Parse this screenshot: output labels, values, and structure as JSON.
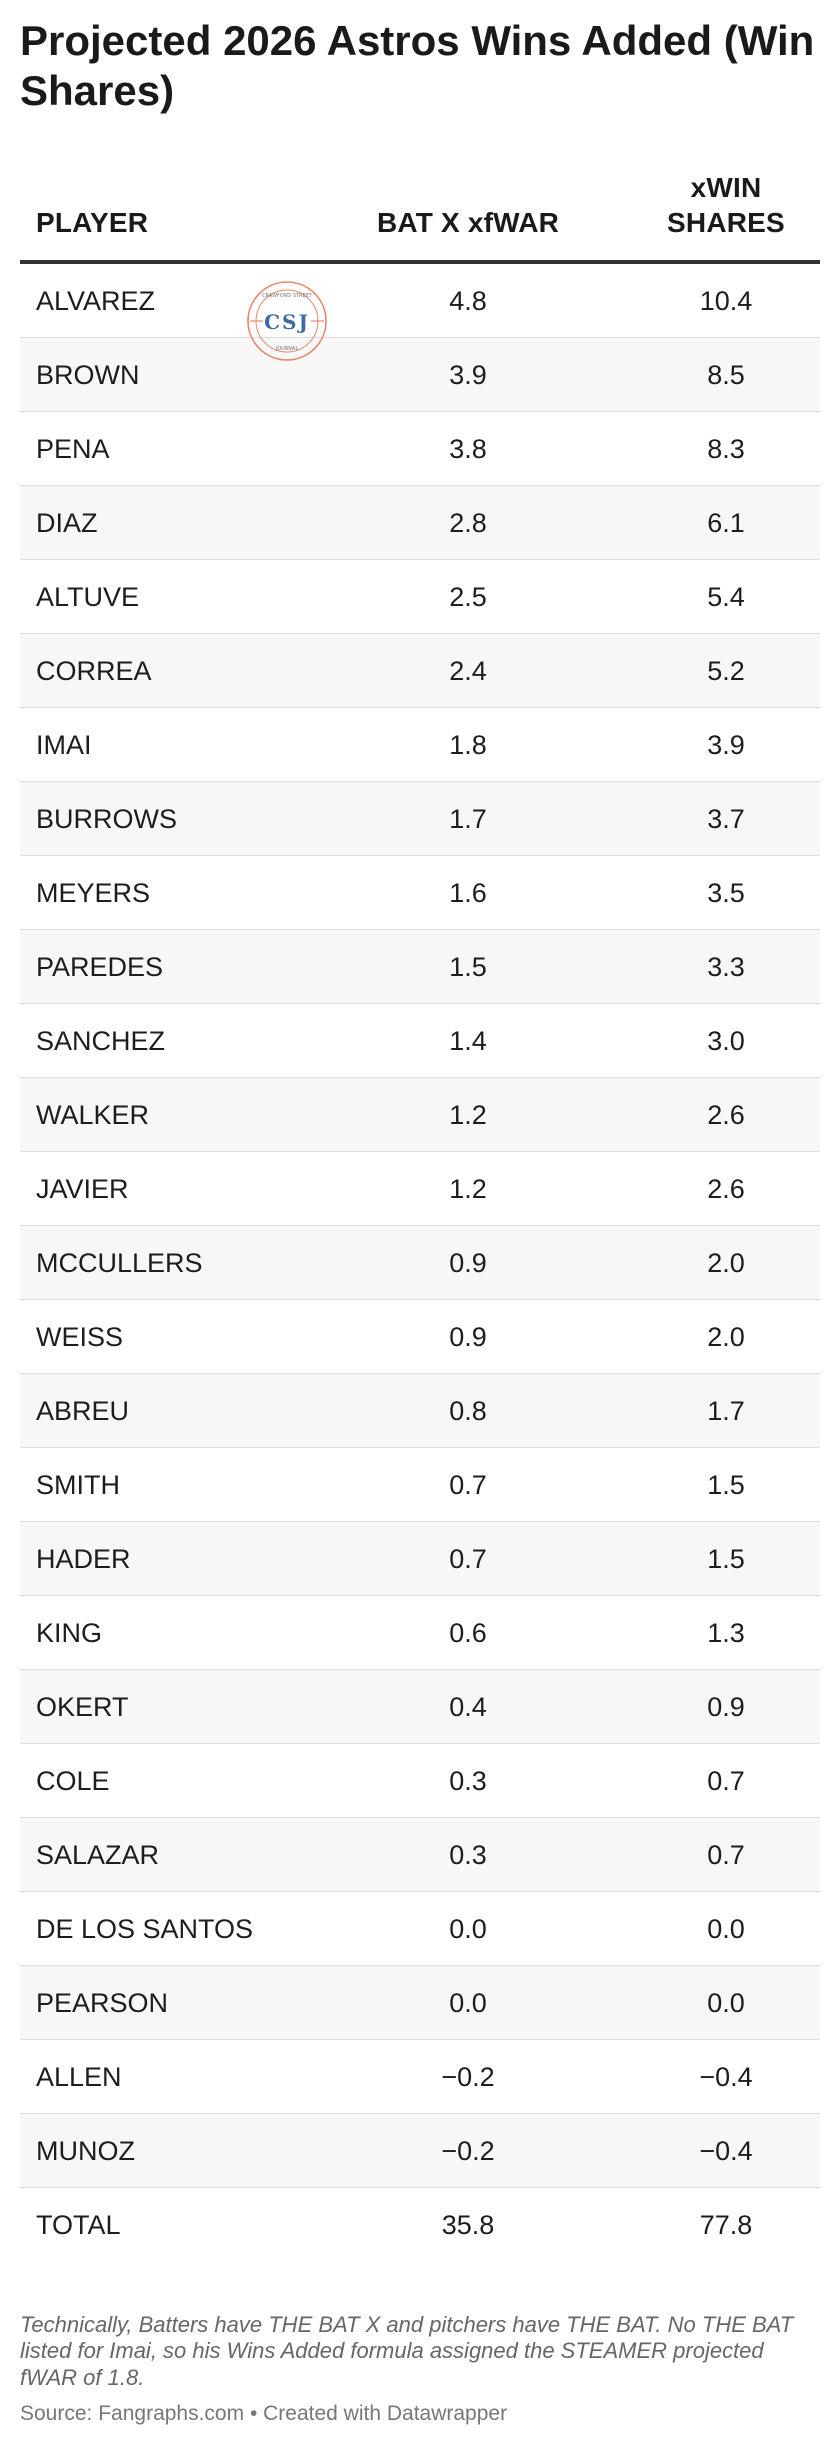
{
  "title": "Projected 2026 Astros Wins Added (Win Shares)",
  "columns": {
    "player": "PLAYER",
    "bat": "BAT X xfWAR",
    "xwin_line1": "xWIN",
    "xwin_line2": "SHARES"
  },
  "watermark": {
    "top_text": "CRAWFORD STREET",
    "initials": "CSJ",
    "bottom_text": "JOURNAL",
    "color": "#e8866a"
  },
  "notes": "Technically, Batters have THE BAT X and pitchers have THE BAT. No THE BAT listed for Imai, so his Wins Added formula assigned the STEAMER projected fWAR of 1.8.",
  "source": "Source: Fangraphs.com • Created with Datawrapper",
  "chart_data": {
    "type": "table",
    "columns": [
      "PLAYER",
      "BAT X xfWAR",
      "xWIN SHARES"
    ],
    "rows": [
      {
        "player": "ALVAREZ",
        "bat": "4.8",
        "xwin": "10.4"
      },
      {
        "player": "BROWN",
        "bat": "3.9",
        "xwin": "8.5"
      },
      {
        "player": "PENA",
        "bat": "3.8",
        "xwin": "8.3"
      },
      {
        "player": "DIAZ",
        "bat": "2.8",
        "xwin": "6.1"
      },
      {
        "player": "ALTUVE",
        "bat": "2.5",
        "xwin": "5.4"
      },
      {
        "player": "CORREA",
        "bat": "2.4",
        "xwin": "5.2"
      },
      {
        "player": "IMAI",
        "bat": "1.8",
        "xwin": "3.9"
      },
      {
        "player": "BURROWS",
        "bat": "1.7",
        "xwin": "3.7"
      },
      {
        "player": "MEYERS",
        "bat": "1.6",
        "xwin": "3.5"
      },
      {
        "player": "PAREDES",
        "bat": "1.5",
        "xwin": "3.3"
      },
      {
        "player": "SANCHEZ",
        "bat": "1.4",
        "xwin": "3.0"
      },
      {
        "player": "WALKER",
        "bat": "1.2",
        "xwin": "2.6"
      },
      {
        "player": "JAVIER",
        "bat": "1.2",
        "xwin": "2.6"
      },
      {
        "player": "MCCULLERS",
        "bat": "0.9",
        "xwin": "2.0"
      },
      {
        "player": "WEISS",
        "bat": "0.9",
        "xwin": "2.0"
      },
      {
        "player": "ABREU",
        "bat": "0.8",
        "xwin": "1.7"
      },
      {
        "player": "SMITH",
        "bat": "0.7",
        "xwin": "1.5"
      },
      {
        "player": "HADER",
        "bat": "0.7",
        "xwin": "1.5"
      },
      {
        "player": "KING",
        "bat": "0.6",
        "xwin": "1.3"
      },
      {
        "player": "OKERT",
        "bat": "0.4",
        "xwin": "0.9"
      },
      {
        "player": "COLE",
        "bat": "0.3",
        "xwin": "0.7"
      },
      {
        "player": "SALAZAR",
        "bat": "0.3",
        "xwin": "0.7"
      },
      {
        "player": "DE LOS SANTOS",
        "bat": "0.0",
        "xwin": "0.0"
      },
      {
        "player": "PEARSON",
        "bat": "0.0",
        "xwin": "0.0"
      },
      {
        "player": "ALLEN",
        "bat": "−0.2",
        "xwin": "−0.4"
      },
      {
        "player": "MUNOZ",
        "bat": "−0.2",
        "xwin": "−0.4"
      },
      {
        "player": "TOTAL",
        "bat": "35.8",
        "xwin": "77.8"
      }
    ]
  }
}
